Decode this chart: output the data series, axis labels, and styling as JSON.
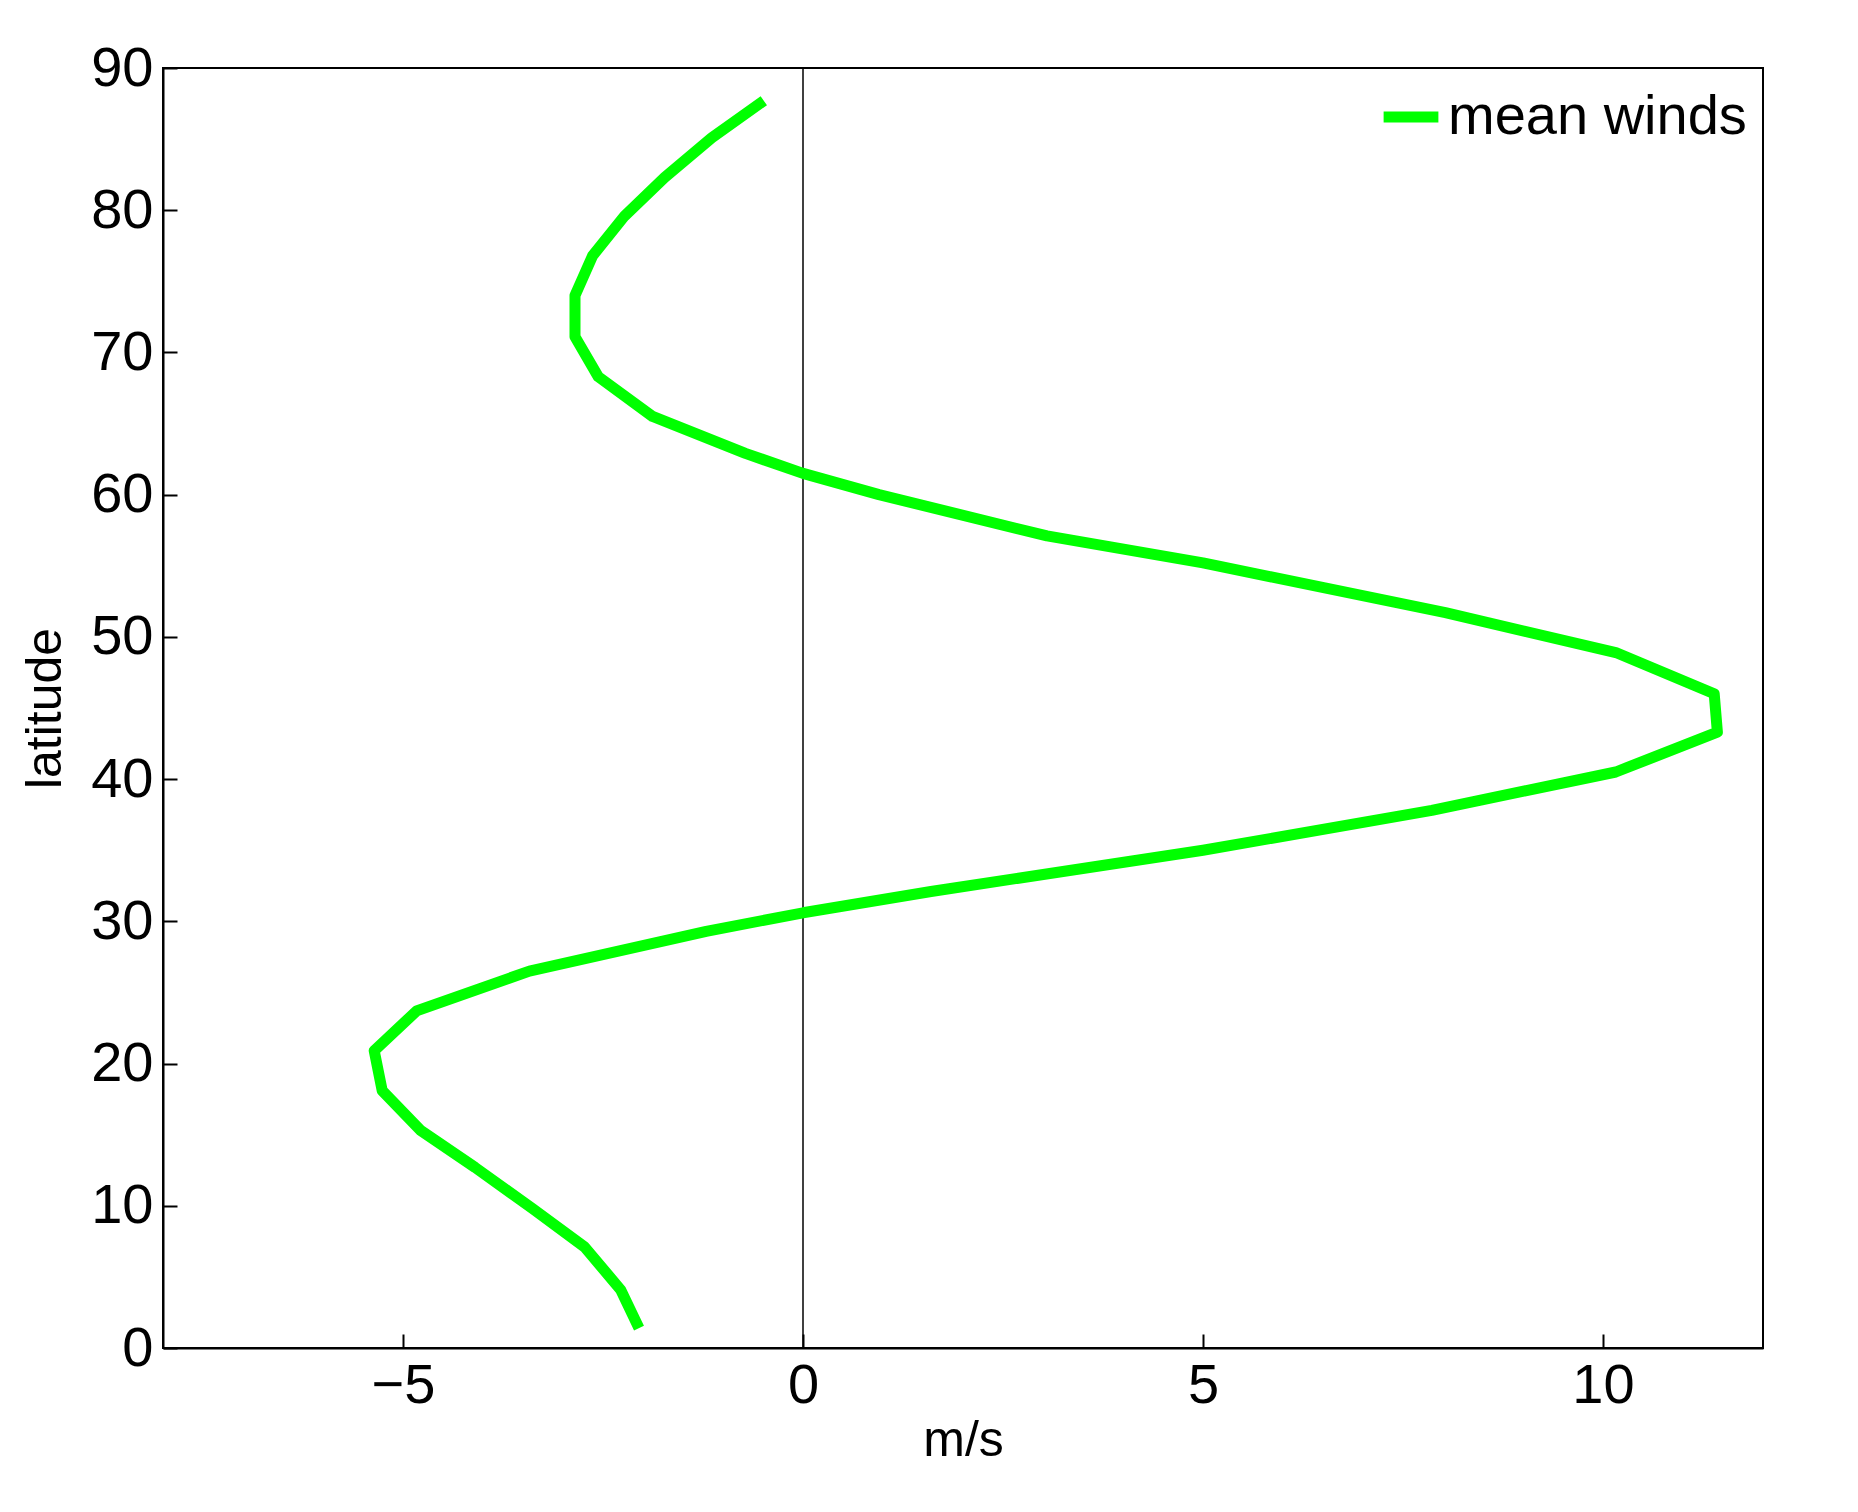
{
  "chart_data": {
    "type": "line",
    "xlabel": "m/s",
    "ylabel": "latitude",
    "xlim": [
      -8,
      12
    ],
    "xticks": [
      -5,
      0,
      5,
      10
    ],
    "ylim": [
      0,
      90
    ],
    "yticks": [
      0,
      10,
      20,
      30,
      40,
      50,
      60,
      70,
      80,
      90
    ],
    "grid": false,
    "legend": "top right",
    "ref_lines": [
      {
        "axis": "x",
        "value": 0,
        "color": "#000000"
      }
    ],
    "series": [
      {
        "name": "mean winds",
        "color": "#00ff00",
        "x": [
          -2.05,
          -2.28,
          -2.73,
          -3.38,
          -4.1,
          -4.78,
          -5.26,
          -5.36,
          -4.83,
          -3.42,
          -1.21,
          0,
          1.6,
          5.0,
          7.86,
          10.16,
          11.43,
          11.39,
          10.16,
          8.03,
          5.0,
          3.05,
          0.95,
          0,
          -0.72,
          -1.88,
          -2.56,
          -2.85,
          -2.85,
          -2.63,
          -2.23,
          -1.73,
          -1.14,
          -0.49
        ],
        "values": [
          1.4,
          4.1,
          7.1,
          9.8,
          12.7,
          15.3,
          18.1,
          20.9,
          23.7,
          26.5,
          29.3,
          30.6,
          32.1,
          35.0,
          37.8,
          40.5,
          43.3,
          46.0,
          48.9,
          51.7,
          55.2,
          57.1,
          60.0,
          61.5,
          62.9,
          65.5,
          68.3,
          71.1,
          74.0,
          76.8,
          79.6,
          82.3,
          85.1,
          87.7
        ]
      }
    ]
  }
}
